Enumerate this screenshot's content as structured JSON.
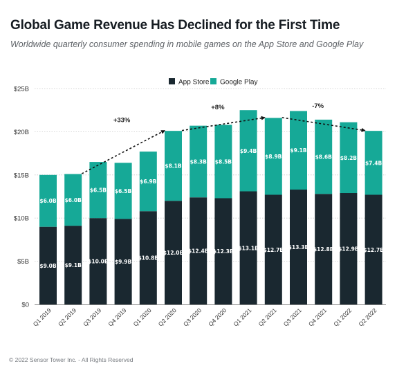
{
  "header": {
    "title": "Global Game Revenue Has Declined for the First Time",
    "subtitle": "Worldwide quarterly consumer spending in mobile games on the App Store and Google Play"
  },
  "footer": {
    "copyright": "© 2022 Sensor Tower Inc. - All Rights Reserved"
  },
  "colors": {
    "app_store": "#1a2830",
    "google_play": "#16a997"
  },
  "chart_data": {
    "type": "bar",
    "stacked": true,
    "title": "Global Game Revenue Has Declined for the First Time",
    "subtitle": "Worldwide quarterly consumer spending in mobile games on the App Store and Google Play",
    "xlabel": "",
    "ylabel": "",
    "ylim": [
      0,
      25
    ],
    "y_unit": "billion USD",
    "yticks": [
      0,
      5,
      10,
      15,
      20,
      25
    ],
    "ytick_labels": [
      "$0",
      "$5B",
      "$10B",
      "$15B",
      "$20B",
      "$25B"
    ],
    "grid": true,
    "legend_position": "top-center",
    "categories": [
      "Q1 2019",
      "Q2 2019",
      "Q3 2019",
      "Q4 2019",
      "Q1 2020",
      "Q2 2020",
      "Q3 2020",
      "Q4 2020",
      "Q1 2021",
      "Q2 2021",
      "Q3 2021",
      "Q4 2021",
      "Q1 2022",
      "Q2 2022"
    ],
    "series": [
      {
        "name": "App Store",
        "color": "#1a2830",
        "values": [
          9.0,
          9.1,
          10.0,
          9.9,
          10.8,
          12.0,
          12.4,
          12.3,
          13.1,
          12.7,
          13.3,
          12.8,
          12.9,
          12.7
        ],
        "labels": [
          "$9.0B",
          "$9.1B",
          "$10.0B",
          "$9.9B",
          "$10.8B",
          "$12.0B",
          "$12.4B",
          "$12.3B",
          "$13.1B",
          "$12.7B",
          "$13.3B",
          "$12.8B",
          "$12.9B",
          "$12.7B"
        ]
      },
      {
        "name": "Google Play",
        "color": "#16a997",
        "values": [
          6.0,
          6.0,
          6.5,
          6.5,
          6.9,
          8.1,
          8.3,
          8.5,
          9.4,
          8.9,
          9.1,
          8.6,
          8.2,
          7.4
        ],
        "labels": [
          "$6.0B",
          "$6.0B",
          "$6.5B",
          "$6.5B",
          "$6.9B",
          "$8.1B",
          "$8.3B",
          "$8.5B",
          "$9.4B",
          "$8.9B",
          "$9.1B",
          "$8.6B",
          "$8.2B",
          "$7.4B"
        ]
      }
    ],
    "annotations": [
      {
        "text": "+33%",
        "from": "Q2 2019",
        "to": "Q2 2020",
        "style": "dashed-arrow"
      },
      {
        "text": "+8%",
        "from": "Q2 2020",
        "to": "Q2 2021",
        "style": "dashed-arrow"
      },
      {
        "text": "-7%",
        "from": "Q2 2021",
        "to": "Q2 2022",
        "style": "dashed-arrow"
      }
    ]
  }
}
